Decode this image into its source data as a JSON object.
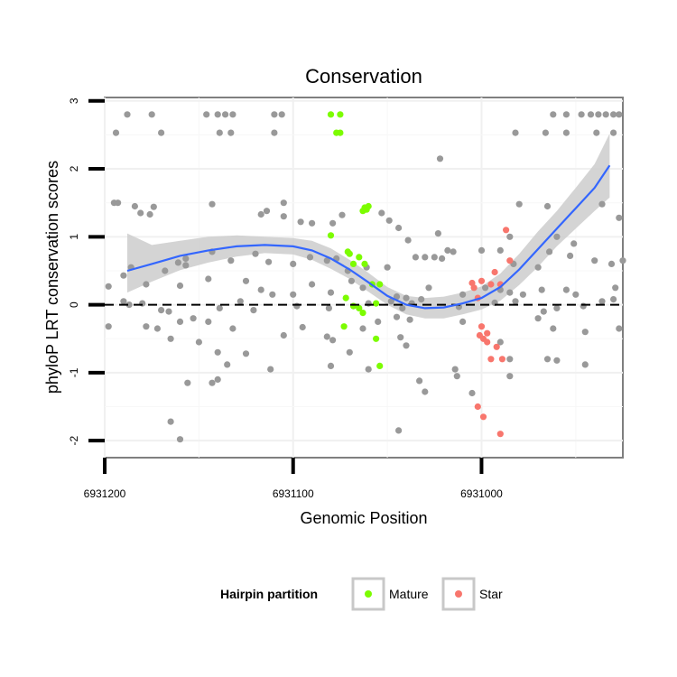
{
  "chart_data": {
    "type": "scatter",
    "title": "Conservation",
    "xlabel": "Genomic Position",
    "ylabel": "phyloP LRT conservation scores",
    "x_reversed": true,
    "xlim": [
      6931200,
      6930925
    ],
    "ylim": [
      -2.25,
      3.05
    ],
    "x_ticks": [
      6931200,
      6931100,
      6931000
    ],
    "x_tick_labels": [
      "6931200",
      "6931100",
      "6931000"
    ],
    "y_ticks": [
      3,
      2,
      1,
      0,
      -1,
      -2
    ],
    "y_tick_labels": [
      "3",
      "2",
      "1",
      "0",
      "-1",
      "-2"
    ],
    "reference_line": {
      "y": 0,
      "style": "dashed"
    },
    "grid": true,
    "legend": {
      "title": "Hairpin partition",
      "position": "bottom",
      "entries": [
        {
          "label": "Mature",
          "color": "#7cfc00"
        },
        {
          "label": "Star",
          "color": "#f8766d"
        }
      ]
    },
    "colors": {
      "other": "#999999",
      "smooth": "#3366ff",
      "ribbon": "#cccccc"
    },
    "series": [
      {
        "name": "",
        "color": "#999999",
        "points": [
          [
            6931188,
            2.8
          ],
          [
            6931175,
            2.8
          ],
          [
            6931146,
            2.8
          ],
          [
            6931140,
            2.8
          ],
          [
            6931136,
            2.8
          ],
          [
            6931132,
            2.8
          ],
          [
            6931110,
            2.8
          ],
          [
            6931106,
            2.8
          ],
          [
            6930947,
            2.8
          ],
          [
            6930942,
            2.8
          ],
          [
            6930938,
            2.8
          ],
          [
            6930934,
            2.8
          ],
          [
            6930930,
            2.8
          ],
          [
            6930927,
            2.8
          ],
          [
            6930962,
            2.8
          ],
          [
            6930955,
            2.8
          ],
          [
            6931194,
            2.53
          ],
          [
            6931170,
            2.53
          ],
          [
            6931139,
            2.53
          ],
          [
            6931133,
            2.53
          ],
          [
            6931110,
            2.53
          ],
          [
            6930982,
            2.53
          ],
          [
            6930966,
            2.53
          ],
          [
            6930955,
            2.53
          ],
          [
            6930939,
            2.53
          ],
          [
            6930930,
            2.53
          ],
          [
            6931022,
            2.15
          ],
          [
            6931195,
            1.5
          ],
          [
            6931193,
            1.5
          ],
          [
            6931174,
            1.44
          ],
          [
            6931184,
            1.45
          ],
          [
            6931181,
            1.35
          ],
          [
            6931176,
            1.33
          ],
          [
            6931105,
            1.5
          ],
          [
            6931143,
            1.48
          ],
          [
            6931114,
            1.38
          ],
          [
            6931117,
            1.33
          ],
          [
            6931105,
            1.3
          ],
          [
            6931096,
            1.22
          ],
          [
            6931090,
            1.2
          ],
          [
            6931079,
            1.2
          ],
          [
            6931074,
            1.32
          ],
          [
            6931053,
            1.35
          ],
          [
            6931049,
            1.24
          ],
          [
            6930980,
            1.48
          ],
          [
            6930965,
            1.45
          ],
          [
            6930936,
            1.48
          ],
          [
            6930927,
            1.28
          ],
          [
            6931044,
            1.13
          ],
          [
            6931023,
            1.05
          ],
          [
            6930960,
            1.0
          ],
          [
            6930985,
            1.0
          ],
          [
            6931039,
            0.95
          ],
          [
            6931018,
            0.8
          ],
          [
            6931015,
            0.78
          ],
          [
            6930990,
            0.8
          ],
          [
            6931000,
            0.8
          ],
          [
            6930964,
            0.78
          ],
          [
            6930951,
            0.9
          ],
          [
            6930953,
            0.72
          ],
          [
            6931157,
            0.68
          ],
          [
            6931143,
            0.78
          ],
          [
            6931120,
            0.75
          ],
          [
            6931091,
            0.7
          ],
          [
            6931035,
            0.7
          ],
          [
            6931030,
            0.7
          ],
          [
            6931025,
            0.7
          ],
          [
            6931021,
            0.68
          ],
          [
            6931186,
            0.55
          ],
          [
            6931168,
            0.5
          ],
          [
            6931161,
            0.62
          ],
          [
            6931157,
            0.58
          ],
          [
            6931133,
            0.65
          ],
          [
            6931113,
            0.63
          ],
          [
            6931100,
            0.6
          ],
          [
            6931082,
            0.65
          ],
          [
            6931077,
            0.68
          ],
          [
            6931071,
            0.5
          ],
          [
            6931061,
            0.55
          ],
          [
            6931050,
            0.55
          ],
          [
            6930983,
            0.6
          ],
          [
            6930970,
            0.55
          ],
          [
            6930940,
            0.65
          ],
          [
            6930931,
            0.6
          ],
          [
            6930925,
            0.65
          ],
          [
            6931198,
            0.27
          ],
          [
            6931190,
            0.43
          ],
          [
            6931178,
            0.3
          ],
          [
            6931160,
            0.28
          ],
          [
            6931145,
            0.38
          ],
          [
            6931125,
            0.35
          ],
          [
            6931117,
            0.22
          ],
          [
            6931111,
            0.15
          ],
          [
            6931100,
            0.15
          ],
          [
            6931090,
            0.3
          ],
          [
            6931080,
            0.18
          ],
          [
            6931069,
            0.35
          ],
          [
            6931063,
            0.25
          ],
          [
            6931045,
            0.12
          ],
          [
            6931040,
            0.1
          ],
          [
            6931032,
            0.08
          ],
          [
            6931028,
            0.25
          ],
          [
            6931010,
            0.15
          ],
          [
            6930998,
            0.25
          ],
          [
            6930990,
            0.22
          ],
          [
            6930985,
            0.18
          ],
          [
            6930978,
            0.15
          ],
          [
            6930968,
            0.22
          ],
          [
            6930955,
            0.22
          ],
          [
            6930950,
            0.15
          ],
          [
            6930936,
            0.05
          ],
          [
            6930929,
            0.25
          ],
          [
            6931190,
            0.05
          ],
          [
            6931187,
            0.0
          ],
          [
            6931180,
            0.02
          ],
          [
            6931170,
            -0.08
          ],
          [
            6931166,
            -0.1
          ],
          [
            6931139,
            -0.05
          ],
          [
            6931128,
            0.05
          ],
          [
            6931121,
            -0.08
          ],
          [
            6931098,
            -0.02
          ],
          [
            6931081,
            -0.05
          ],
          [
            6931060,
            0.02
          ],
          [
            6931048,
            0.05
          ],
          [
            6931042,
            -0.05
          ],
          [
            6931037,
            0.02
          ],
          [
            6931012,
            -0.03
          ],
          [
            6930993,
            0.03
          ],
          [
            6930982,
            0.05
          ],
          [
            6930967,
            -0.1
          ],
          [
            6930960,
            -0.05
          ],
          [
            6930946,
            -0.02
          ],
          [
            6930930,
            0.08
          ],
          [
            6931198,
            -0.32
          ],
          [
            6931178,
            -0.32
          ],
          [
            6931172,
            -0.35
          ],
          [
            6931160,
            -0.25
          ],
          [
            6931153,
            -0.2
          ],
          [
            6931145,
            -0.25
          ],
          [
            6931132,
            -0.35
          ],
          [
            6931105,
            -0.45
          ],
          [
            6931095,
            -0.33
          ],
          [
            6931082,
            -0.47
          ],
          [
            6931079,
            -0.52
          ],
          [
            6931063,
            -0.35
          ],
          [
            6931055,
            -0.25
          ],
          [
            6931045,
            -0.18
          ],
          [
            6931038,
            -0.22
          ],
          [
            6931010,
            -0.25
          ],
          [
            6930970,
            -0.2
          ],
          [
            6930962,
            -0.35
          ],
          [
            6930945,
            -0.4
          ],
          [
            6930927,
            -0.35
          ],
          [
            6931165,
            -0.5
          ],
          [
            6931150,
            -0.55
          ],
          [
            6931140,
            -0.7
          ],
          [
            6931125,
            -0.72
          ],
          [
            6931070,
            -0.7
          ],
          [
            6931043,
            -0.48
          ],
          [
            6931040,
            -0.6
          ],
          [
            6930990,
            -0.55
          ],
          [
            6930985,
            -0.8
          ],
          [
            6930965,
            -0.8
          ],
          [
            6930960,
            -0.82
          ],
          [
            6931135,
            -0.88
          ],
          [
            6931112,
            -0.95
          ],
          [
            6931080,
            -0.9
          ],
          [
            6931060,
            -0.95
          ],
          [
            6930985,
            -1.05
          ],
          [
            6930945,
            -0.88
          ],
          [
            6931140,
            -1.1
          ],
          [
            6931143,
            -1.15
          ],
          [
            6931033,
            -1.12
          ],
          [
            6931014,
            -0.95
          ],
          [
            6931013,
            -1.05
          ],
          [
            6931005,
            -1.3
          ],
          [
            6931030,
            -1.28
          ],
          [
            6931165,
            -1.72
          ],
          [
            6931160,
            -1.98
          ],
          [
            6931044,
            -1.85
          ],
          [
            6931156,
            -1.15
          ]
        ]
      },
      {
        "name": "Mature",
        "color": "#7cfc00",
        "points": [
          [
            6931080,
            2.8
          ],
          [
            6931075,
            2.8
          ],
          [
            6931077,
            2.53
          ],
          [
            6931075,
            2.53
          ],
          [
            6931060,
            1.45
          ],
          [
            6931062,
            1.43
          ],
          [
            6931080,
            1.02
          ],
          [
            6931063,
            1.38
          ],
          [
            6931061,
            1.4
          ],
          [
            6931070,
            0.75
          ],
          [
            6931065,
            0.7
          ],
          [
            6931068,
            0.6
          ],
          [
            6931062,
            0.6
          ],
          [
            6931072,
            0.1
          ],
          [
            6931071,
            0.78
          ],
          [
            6931068,
            -0.02
          ],
          [
            6931065,
            -0.05
          ],
          [
            6931073,
            -0.32
          ],
          [
            6931063,
            -0.12
          ],
          [
            6931056,
            -0.5
          ],
          [
            6931054,
            -0.9
          ],
          [
            6931058,
            0.3
          ],
          [
            6931054,
            0.3
          ],
          [
            6931056,
            0.02
          ]
        ]
      },
      {
        "name": "Star",
        "color": "#f8766d",
        "points": [
          [
            6930987,
            1.1
          ],
          [
            6930993,
            0.48
          ],
          [
            6930985,
            0.65
          ],
          [
            6931000,
            0.35
          ],
          [
            6931005,
            0.32
          ],
          [
            6931004,
            0.25
          ],
          [
            6930995,
            0.3
          ],
          [
            6930990,
            0.3
          ],
          [
            6931002,
            0.1
          ],
          [
            6931000,
            -0.32
          ],
          [
            6930997,
            -0.42
          ],
          [
            6930999,
            -0.5
          ],
          [
            6931001,
            -0.45
          ],
          [
            6930997,
            -0.55
          ],
          [
            6930992,
            -0.62
          ],
          [
            6930995,
            -0.8
          ],
          [
            6930989,
            -0.8
          ],
          [
            6931002,
            -1.5
          ],
          [
            6930999,
            -1.65
          ],
          [
            6930990,
            -1.9
          ]
        ]
      }
    ],
    "smooth_fit": {
      "x": [
        6931188,
        6931175,
        6931160,
        6931145,
        6931130,
        6931115,
        6931100,
        6931090,
        6931080,
        6931070,
        6931060,
        6931050,
        6931040,
        6931030,
        6931020,
        6931010,
        6931000,
        6930990,
        6930980,
        6930970,
        6930960,
        6930950,
        6930940,
        6930932
      ],
      "y": [
        0.5,
        0.6,
        0.72,
        0.8,
        0.86,
        0.88,
        0.86,
        0.8,
        0.68,
        0.52,
        0.33,
        0.13,
        0.0,
        -0.05,
        -0.04,
        0.02,
        0.1,
        0.26,
        0.52,
        0.82,
        1.12,
        1.42,
        1.72,
        2.05
      ],
      "lower": [
        0.18,
        0.34,
        0.51,
        0.62,
        0.71,
        0.76,
        0.74,
        0.66,
        0.53,
        0.38,
        0.19,
        0.0,
        -0.14,
        -0.2,
        -0.2,
        -0.14,
        -0.07,
        0.06,
        0.29,
        0.56,
        0.86,
        1.12,
        1.38,
        1.58
      ],
      "upper": [
        1.05,
        0.88,
        0.94,
        1.0,
        1.02,
        1.0,
        0.98,
        0.94,
        0.83,
        0.66,
        0.47,
        0.26,
        0.13,
        0.1,
        0.12,
        0.18,
        0.27,
        0.46,
        0.75,
        1.08,
        1.38,
        1.72,
        2.07,
        2.52
      ]
    }
  }
}
